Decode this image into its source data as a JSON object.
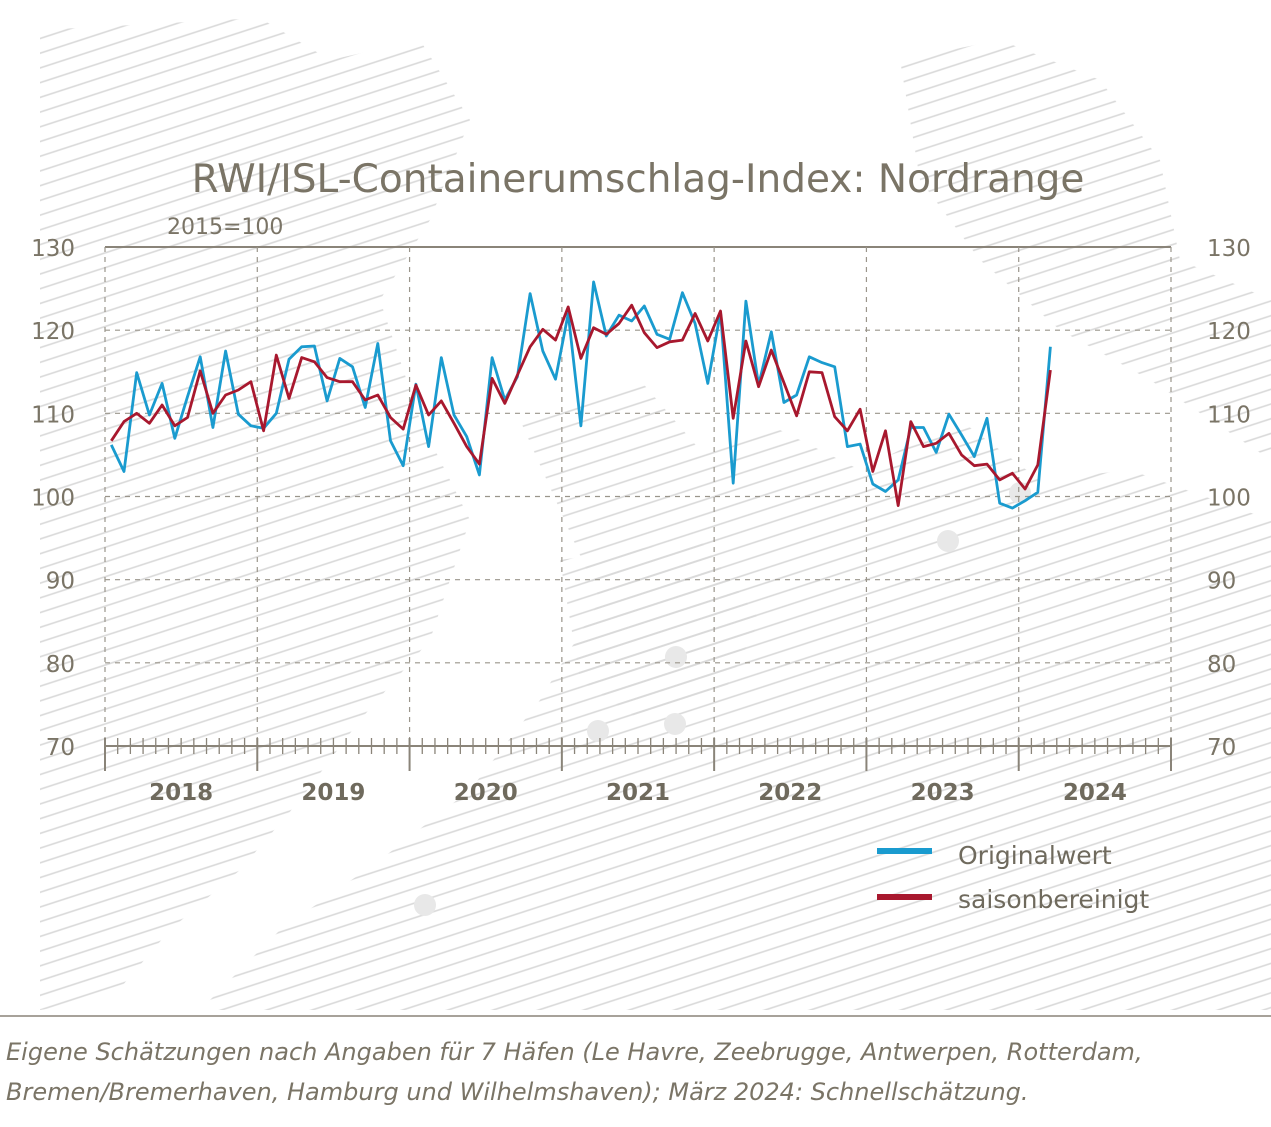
{
  "colors": {
    "original": "#1a9bcf",
    "adjusted": "#a8182e",
    "text": "#7a7466",
    "axis": "#8a8479",
    "grid": "#9a958b",
    "background_hatch": "#dcdcdc"
  },
  "chart_data": {
    "type": "line",
    "title": "RWI/ISL-Containerumschlag-Index: Nordrange",
    "subtitle": "2015=100",
    "xlabel": "",
    "ylabel": "",
    "ylim": [
      70,
      130
    ],
    "yticks": [
      70,
      80,
      90,
      100,
      110,
      120,
      130
    ],
    "years": [
      "2018",
      "2019",
      "2020",
      "2021",
      "2022",
      "2023",
      "2024"
    ],
    "x_start": "2018-01",
    "x_end": "2024-12",
    "x": [
      "2018-01",
      "2018-02",
      "2018-03",
      "2018-04",
      "2018-05",
      "2018-06",
      "2018-07",
      "2018-08",
      "2018-09",
      "2018-10",
      "2018-11",
      "2018-12",
      "2019-01",
      "2019-02",
      "2019-03",
      "2019-04",
      "2019-05",
      "2019-06",
      "2019-07",
      "2019-08",
      "2019-09",
      "2019-10",
      "2019-11",
      "2019-12",
      "2020-01",
      "2020-02",
      "2020-03",
      "2020-04",
      "2020-05",
      "2020-06",
      "2020-07",
      "2020-08",
      "2020-09",
      "2020-10",
      "2020-11",
      "2020-12",
      "2021-01",
      "2021-02",
      "2021-03",
      "2021-04",
      "2021-05",
      "2021-06",
      "2021-07",
      "2021-08",
      "2021-09",
      "2021-10",
      "2021-11",
      "2021-12",
      "2022-01",
      "2022-02",
      "2022-03",
      "2022-04",
      "2022-05",
      "2022-06",
      "2022-07",
      "2022-08",
      "2022-09",
      "2022-10",
      "2022-11",
      "2022-12",
      "2023-01",
      "2023-02",
      "2023-03",
      "2023-04",
      "2023-05",
      "2023-06",
      "2023-07",
      "2023-08",
      "2023-09",
      "2023-10",
      "2023-11",
      "2023-12",
      "2024-01",
      "2024-02",
      "2024-03"
    ],
    "grid": true,
    "legend_position": "bottom-right",
    "series": [
      {
        "name": "Originalwert",
        "values": [
          106.2,
          103.0,
          114.9,
          109.8,
          113.6,
          107.0,
          112.0,
          116.8,
          108.3,
          117.5,
          109.9,
          108.5,
          108.2,
          110.0,
          116.5,
          118.0,
          118.1,
          111.5,
          116.6,
          115.6,
          110.7,
          118.4,
          106.7,
          103.7,
          113.5,
          106.0,
          116.7,
          109.8,
          107.2,
          102.6,
          116.7,
          111.6,
          114.4,
          124.4,
          117.5,
          114.1,
          122.0,
          108.5,
          125.8,
          119.3,
          121.8,
          121.1,
          122.9,
          119.5,
          118.9,
          124.5,
          120.8,
          113.6,
          122.2,
          101.6,
          123.5,
          113.4,
          119.8,
          111.3,
          112.2,
          116.8,
          116.1,
          115.6,
          106.0,
          106.3,
          101.5,
          100.6,
          102.0,
          108.3,
          108.3,
          105.3,
          109.9,
          107.4,
          104.8,
          109.4,
          99.2,
          98.6,
          99.5,
          100.5,
          118.0
        ]
      },
      {
        "name": "saisonbereinigt",
        "values": [
          106.7,
          109.0,
          110.0,
          108.8,
          111.0,
          108.5,
          109.5,
          115.1,
          110.0,
          112.2,
          112.8,
          113.8,
          107.9,
          117.0,
          111.8,
          116.7,
          116.2,
          114.3,
          113.8,
          113.8,
          111.6,
          112.2,
          109.5,
          108.1,
          113.4,
          109.8,
          111.5,
          108.8,
          106.0,
          103.9,
          114.2,
          111.2,
          114.6,
          118.0,
          120.1,
          118.8,
          122.8,
          116.6,
          120.3,
          119.5,
          120.8,
          123.0,
          119.7,
          117.9,
          118.6,
          118.8,
          122.0,
          118.7,
          122.3,
          109.4,
          118.7,
          113.2,
          117.6,
          113.7,
          109.7,
          115.0,
          114.9,
          109.6,
          107.9,
          110.5,
          103.0,
          107.9,
          98.9,
          109.0,
          106.0,
          106.4,
          107.6,
          105.0,
          103.7,
          103.9,
          102.0,
          102.8,
          100.9,
          103.8,
          115.2
        ]
      }
    ]
  },
  "note": {
    "line1": "Eigene Schätzungen nach Angaben für 7 Häfen (Le Havre, Zeebrugge, Antwerpen, Rotterdam,",
    "line2": "Bremen/Bremerhaven, Hamburg und Wilhelmshaven); März 2024: Schnellschätzung."
  }
}
